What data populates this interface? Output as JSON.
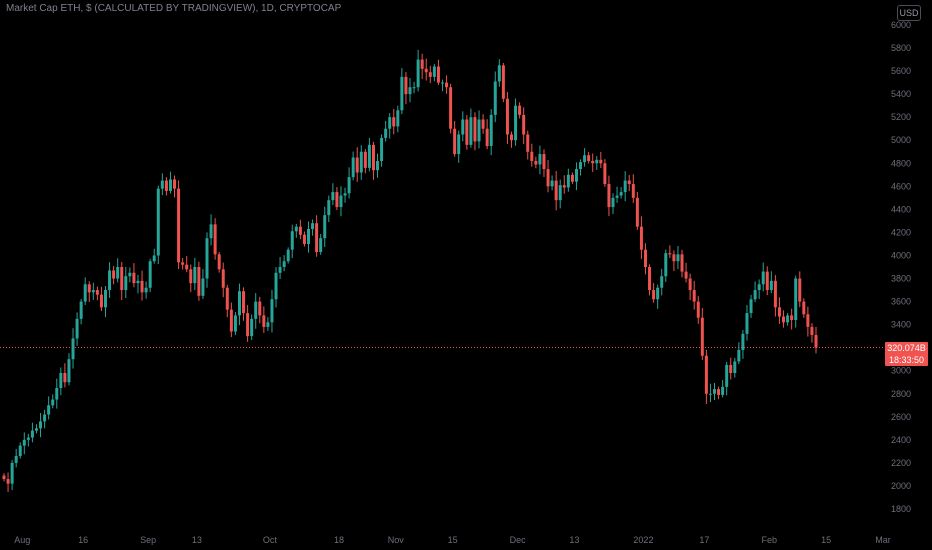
{
  "header": {
    "title": "Market Cap ETH, $ (CALCULATED BY TRADINGVIEW), 1D, CRYPTOCAP",
    "currency_button": "USD"
  },
  "colors": {
    "up": "#26a69a",
    "down": "#ef5350",
    "background": "#000000",
    "price_line": "#ef5350"
  },
  "price_tag": {
    "value": "320.074B",
    "countdown": "18:33:50"
  },
  "chart_data": {
    "type": "candlestick",
    "title": "Market Cap ETH, $ (CALCULATED BY TRADINGVIEW), 1D, CRYPTOCAP",
    "xlabel": "",
    "ylabel": "",
    "x_ticks": [
      {
        "label": "Aug",
        "t": 4.5
      },
      {
        "label": "16",
        "t": 19.5
      },
      {
        "label": "Sep",
        "t": 35.5
      },
      {
        "label": "13",
        "t": 47.5
      },
      {
        "label": "Oct",
        "t": 65.5
      },
      {
        "label": "18",
        "t": 82.5
      },
      {
        "label": "Nov",
        "t": 96.5
      },
      {
        "label": "15",
        "t": 110.5
      },
      {
        "label": "Dec",
        "t": 126.5
      },
      {
        "label": "13",
        "t": 140.5
      },
      {
        "label": "2022",
        "t": 157.5
      },
      {
        "label": "17",
        "t": 172.5
      },
      {
        "label": "Feb",
        "t": 188.5
      },
      {
        "label": "15",
        "t": 202.5
      },
      {
        "label": "Mar",
        "t": 216.5
      }
    ],
    "y_ticks": [
      "1800",
      "2000",
      "2200",
      "2400",
      "2600",
      "2800",
      "3000",
      "3200",
      "3400",
      "3600",
      "3800",
      "4000",
      "4200",
      "4400",
      "4600",
      "4800",
      "5000",
      "5200",
      "5400",
      "5600",
      "5800",
      "6000"
    ],
    "y_unit_note": "",
    "ylim": [
      1700,
      6050
    ],
    "last_value": 3201,
    "closes": [
      2060,
      2020,
      2200,
      2260,
      2350,
      2400,
      2420,
      2480,
      2500,
      2560,
      2620,
      2700,
      2750,
      2850,
      2980,
      2900,
      3100,
      3280,
      3450,
      3600,
      3750,
      3680,
      3700,
      3660,
      3550,
      3700,
      3870,
      3800,
      3900,
      3700,
      3820,
      3850,
      3760,
      3780,
      3680,
      3720,
      3950,
      4000,
      4580,
      4650,
      4560,
      4660,
      4580,
      3940,
      3920,
      3880,
      3760,
      3900,
      3650,
      3800,
      4150,
      4270,
      4010,
      3880,
      3720,
      3530,
      3340,
      3480,
      3690,
      3500,
      3300,
      3450,
      3600,
      3480,
      3380,
      3420,
      3620,
      3850,
      3900,
      3950,
      4050,
      4210,
      4250,
      4180,
      4100,
      4230,
      4280,
      4030,
      4150,
      4350,
      4480,
      4550,
      4420,
      4520,
      4540,
      4680,
      4850,
      4720,
      4900,
      4760,
      4960,
      4740,
      4820,
      5020,
      5100,
      5200,
      5120,
      5260,
      5550,
      5400,
      5460,
      5460,
      5700,
      5620,
      5590,
      5550,
      5640,
      5500,
      5500,
      5460,
      5100,
      4880,
      5050,
      5180,
      4960,
      5200,
      4990,
      5180,
      5100,
      4950,
      5220,
      5510,
      5650,
      5360,
      5050,
      5000,
      5300,
      5220,
      5050,
      4900,
      4820,
      4790,
      4880,
      4750,
      4600,
      4650,
      4480,
      4610,
      4590,
      4700,
      4640,
      4750,
      4810,
      4870,
      4820,
      4800,
      4830,
      4800,
      4620,
      4420,
      4500,
      4520,
      4550,
      4650,
      4620,
      4500,
      4250,
      4050,
      3900,
      3700,
      3620,
      3720,
      3820,
      4020,
      4010,
      3950,
      4010,
      3860,
      3800,
      3700,
      3600,
      3460,
      3130,
      2800,
      2800,
      2840,
      2790,
      2860,
      3050,
      2980,
      3080,
      3180,
      3320,
      3500,
      3620,
      3700,
      3750,
      3860,
      3700,
      3780,
      3550,
      3470,
      3420,
      3480,
      3440,
      3800,
      3600,
      3490,
      3380,
      3310,
      3201
    ]
  }
}
